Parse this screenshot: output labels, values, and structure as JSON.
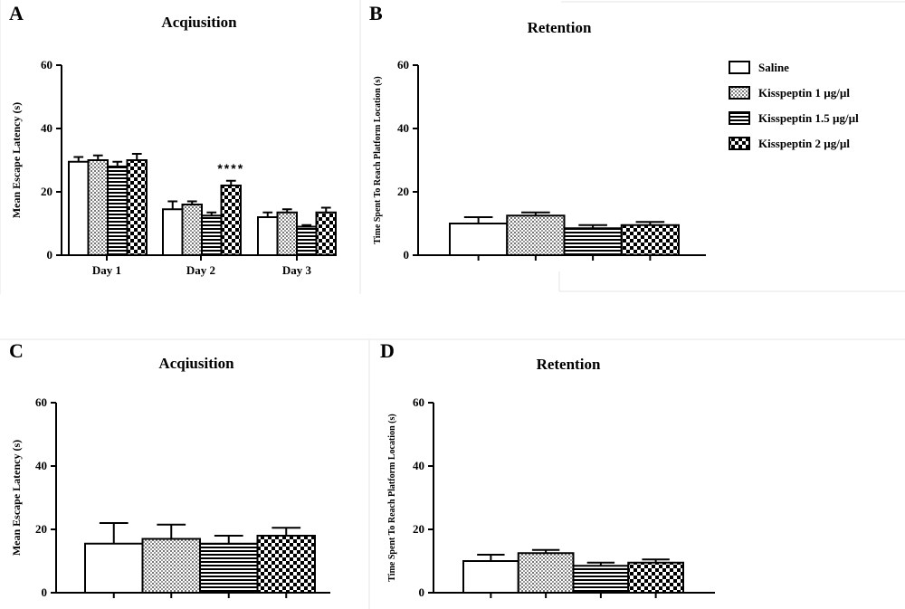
{
  "chart_data": [
    {
      "panel": "A",
      "title": "Acqiusition",
      "type": "bar",
      "ylabel": "Mean Escape Latency (s)",
      "ylim": [
        0,
        60
      ],
      "yticks": [
        "0",
        "20",
        "40",
        "60"
      ],
      "categories": [
        "Day 1",
        "Day 2",
        "Day 3"
      ],
      "series": [
        {
          "name": "Saline",
          "values": [
            29.5,
            14.5,
            12
          ],
          "errors": [
            1.5,
            2.5,
            1.5
          ]
        },
        {
          "name": "Kisspeptin 1 µg/µl",
          "values": [
            30,
            16,
            13.5
          ],
          "errors": [
            1.5,
            1.0,
            1.0
          ]
        },
        {
          "name": "Kisspeptin 1.5 µg/µl",
          "values": [
            28,
            12.5,
            9
          ],
          "errors": [
            1.5,
            1.0,
            0.5
          ]
        },
        {
          "name": "Kisspeptin 2 µg/µl",
          "values": [
            30,
            22,
            13.5
          ],
          "errors": [
            2.0,
            1.5,
            1.5
          ]
        }
      ],
      "annotation": {
        "text": "****",
        "category": "Day 2"
      }
    },
    {
      "panel": "B",
      "title": "Retention",
      "type": "bar",
      "ylabel": "Time Spent To Reach Platform Location (s)",
      "ylim": [
        0,
        60
      ],
      "yticks": [
        "0",
        "20",
        "40",
        "60"
      ],
      "series": [
        {
          "name": "Saline",
          "values": [
            10
          ],
          "errors": [
            2.0
          ]
        },
        {
          "name": "Kisspeptin 1 µg/µl",
          "values": [
            12.5
          ],
          "errors": [
            1.0
          ]
        },
        {
          "name": "Kisspeptin 1.5 µg/µl",
          "values": [
            8.5
          ],
          "errors": [
            1.0
          ]
        },
        {
          "name": "Kisspeptin 2 µg/µl",
          "values": [
            9.5
          ],
          "errors": [
            1.0
          ]
        }
      ]
    },
    {
      "panel": "C",
      "title": "Acqiusition",
      "type": "bar",
      "ylabel": "Mean Escape Latency (s)",
      "ylim": [
        0,
        60
      ],
      "yticks": [
        "0",
        "20",
        "40",
        "60"
      ],
      "series": [
        {
          "name": "Saline",
          "values": [
            15.5
          ],
          "errors": [
            6.5
          ]
        },
        {
          "name": "Kisspeptin 1 µg/µl",
          "values": [
            17
          ],
          "errors": [
            4.5
          ]
        },
        {
          "name": "Kisspeptin 1.5 µg/µl",
          "values": [
            15.5
          ],
          "errors": [
            2.5
          ]
        },
        {
          "name": "Kisspeptin 2 µg/µl",
          "values": [
            18
          ],
          "errors": [
            2.5
          ]
        }
      ]
    },
    {
      "panel": "D",
      "title": "Retention",
      "type": "bar",
      "ylabel": "Time Spent To Reach Platform Location (s)",
      "ylim": [
        0,
        60
      ],
      "yticks": [
        "0",
        "20",
        "40",
        "60"
      ],
      "series": [
        {
          "name": "Saline",
          "values": [
            10
          ],
          "errors": [
            2.0
          ]
        },
        {
          "name": "Kisspeptin 1 µg/µl",
          "values": [
            12.5
          ],
          "errors": [
            1.0
          ]
        },
        {
          "name": "Kisspeptin 1.5 µg/µl",
          "values": [
            8.5
          ],
          "errors": [
            1.0
          ]
        },
        {
          "name": "Kisspeptin 2 µg/µl",
          "values": [
            9.5
          ],
          "errors": [
            1.0
          ]
        }
      ]
    }
  ],
  "legend": [
    {
      "label": "Saline",
      "pattern": "empty"
    },
    {
      "label": "Kisspeptin 1 µg/µl",
      "pattern": "dots"
    },
    {
      "label": "Kisspeptin 1.5 µg/µl",
      "pattern": "hlines"
    },
    {
      "label": "Kisspeptin 2 µg/µl",
      "pattern": "checker"
    }
  ]
}
